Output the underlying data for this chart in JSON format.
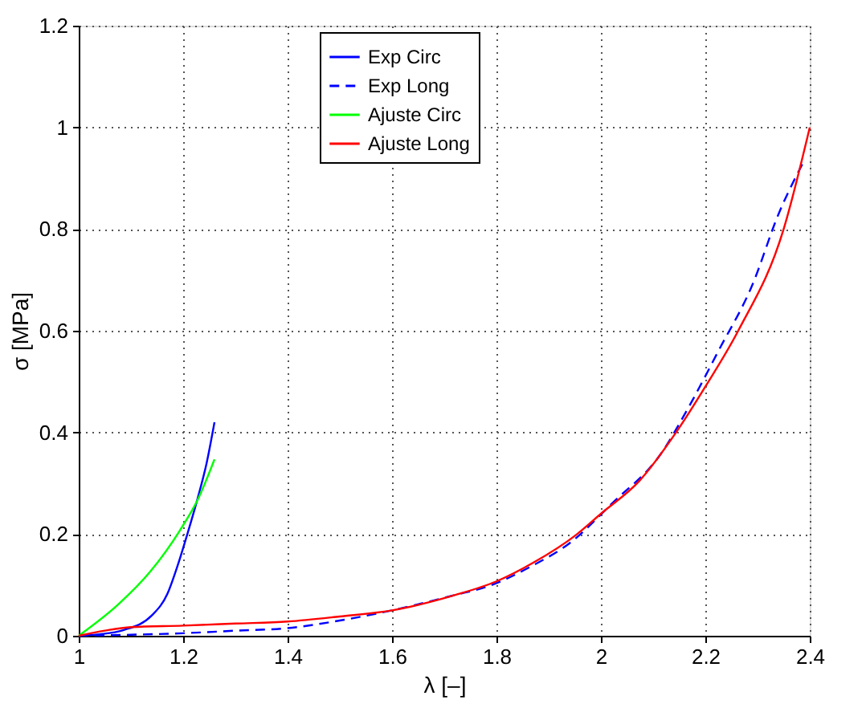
{
  "chart_data": {
    "type": "line",
    "xlabel": "λ [–]",
    "ylabel": "σ [MPa]",
    "xlim": [
      1,
      2.4
    ],
    "ylim": [
      0,
      1.2
    ],
    "xticks": [
      1,
      1.2,
      1.4,
      1.6,
      1.8,
      2,
      2.2,
      2.4
    ],
    "yticks": [
      0,
      0.2,
      0.4,
      0.6,
      0.8,
      1,
      1.2
    ],
    "grid": true,
    "legend": "top",
    "marker": "none",
    "series": [
      {
        "name": "Exp Circ",
        "color": "#0000ff",
        "line_style": "solid",
        "x": [
          1,
          1.04,
          1.085,
          1.14,
          1.17,
          1.19,
          1.208,
          1.229,
          1.245,
          1.26
        ],
        "values": [
          0,
          0.003,
          0.011,
          0.04,
          0.083,
          0.14,
          0.2,
          0.275,
          0.34,
          0.42
        ]
      },
      {
        "name": "Exp Long",
        "color": "#0000ff",
        "line_style": "dashed",
        "x": [
          1,
          1.1,
          1.2,
          1.3,
          1.4,
          1.5,
          1.6,
          1.72,
          1.78,
          1.871,
          1.94,
          2.023,
          2.115,
          2.165,
          2.226,
          2.29,
          2.34,
          2.39
        ],
        "values": [
          0,
          0.002,
          0.005,
          0.01,
          0.015,
          0.03,
          0.05,
          0.08,
          0.096,
          0.139,
          0.182,
          0.262,
          0.358,
          0.444,
          0.562,
          0.69,
          0.829,
          0.936
        ]
      },
      {
        "name": "Ajuste Circ",
        "color": "#00ff00",
        "line_style": "solid",
        "x": [
          1,
          1.075,
          1.136,
          1.193,
          1.229,
          1.26
        ],
        "values": [
          0,
          0.061,
          0.125,
          0.206,
          0.27,
          0.347
        ]
      },
      {
        "name": "Ajuste Long",
        "color": "#ff0000",
        "line_style": "solid",
        "x": [
          1,
          1.05,
          1.1,
          1.2,
          1.3,
          1.4,
          1.5,
          1.6,
          1.72,
          1.8,
          1.871,
          1.952,
          2,
          2.074,
          2.144,
          2.2,
          2.263,
          2.35,
          2.4
        ],
        "values": [
          0,
          0.01,
          0.017,
          0.02,
          0.024,
          0.028,
          0.038,
          0.05,
          0.08,
          0.107,
          0.144,
          0.198,
          0.24,
          0.305,
          0.4,
          0.49,
          0.6,
          0.8,
          1.0
        ]
      }
    ]
  }
}
